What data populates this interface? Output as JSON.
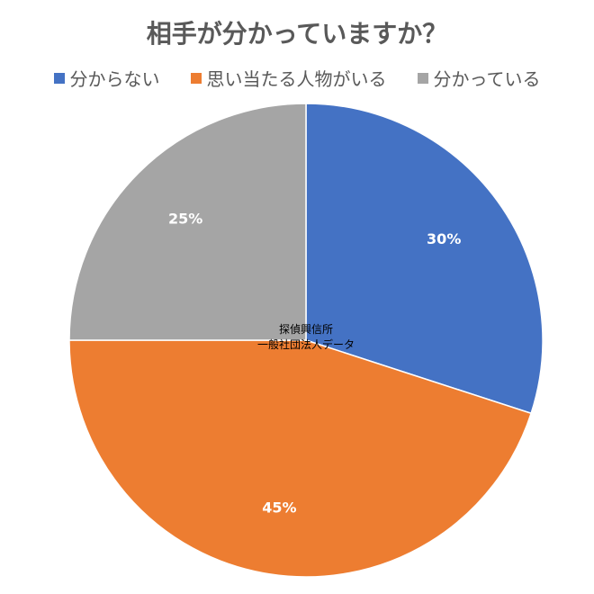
{
  "title": "相手が分かっていますか？",
  "watermark": {
    "line1": "探偵興信所",
    "line2": "一般社団法人データ"
  },
  "chart_data": {
    "type": "pie",
    "title": "相手が分かっていますか？",
    "legend_position": "top",
    "start_angle_deg": 0,
    "direction": "clockwise",
    "slices": [
      {
        "name": "分からない",
        "value": 30,
        "label": "30%",
        "color": "#4472C4"
      },
      {
        "name": "思い当たる人物がいる",
        "value": 45,
        "label": "45%",
        "color": "#ED7D31"
      },
      {
        "name": "分かっている",
        "value": 25,
        "label": "25%",
        "color": "#A5A5A5"
      }
    ]
  }
}
